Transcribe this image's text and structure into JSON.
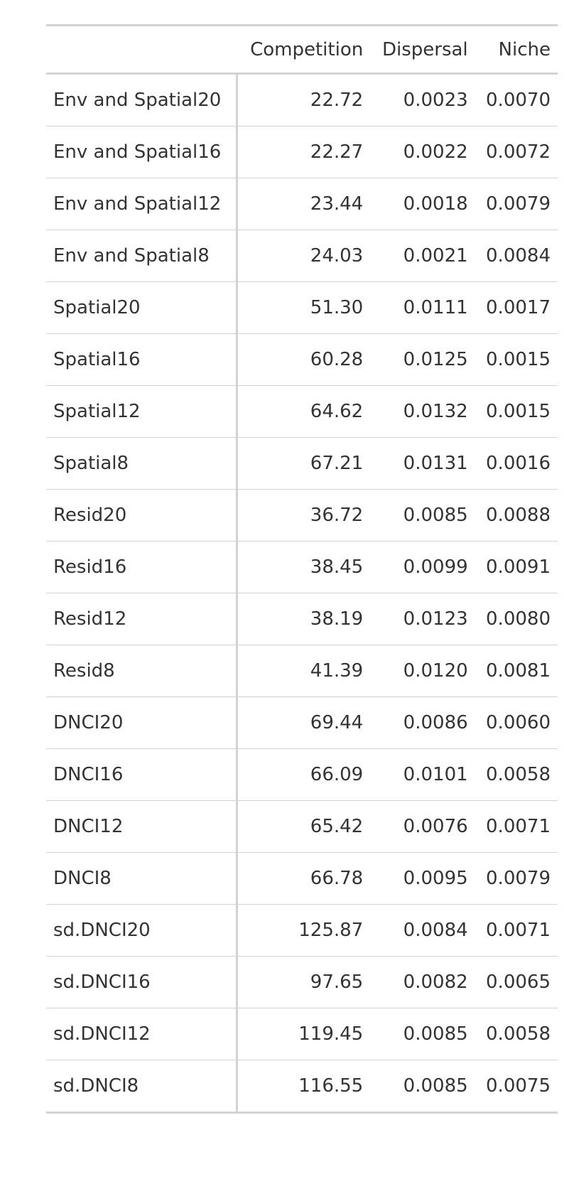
{
  "table": {
    "headers": {
      "stub": "",
      "competition": "Competition",
      "dispersal": "Dispersal",
      "niche": "Niche"
    },
    "rows": [
      {
        "label": "Env and Spatial20",
        "competition": "22.72",
        "dispersal": "0.0023",
        "niche": "0.0070"
      },
      {
        "label": "Env and Spatial16",
        "competition": "22.27",
        "dispersal": "0.0022",
        "niche": "0.0072"
      },
      {
        "label": "Env and Spatial12",
        "competition": "23.44",
        "dispersal": "0.0018",
        "niche": "0.0079"
      },
      {
        "label": "Env and Spatial8",
        "competition": "24.03",
        "dispersal": "0.0021",
        "niche": "0.0084"
      },
      {
        "label": "Spatial20",
        "competition": "51.30",
        "dispersal": "0.0111",
        "niche": "0.0017"
      },
      {
        "label": "Spatial16",
        "competition": "60.28",
        "dispersal": "0.0125",
        "niche": "0.0015"
      },
      {
        "label": "Spatial12",
        "competition": "64.62",
        "dispersal": "0.0132",
        "niche": "0.0015"
      },
      {
        "label": "Spatial8",
        "competition": "67.21",
        "dispersal": "0.0131",
        "niche": "0.0016"
      },
      {
        "label": "Resid20",
        "competition": "36.72",
        "dispersal": "0.0085",
        "niche": "0.0088"
      },
      {
        "label": "Resid16",
        "competition": "38.45",
        "dispersal": "0.0099",
        "niche": "0.0091"
      },
      {
        "label": "Resid12",
        "competition": "38.19",
        "dispersal": "0.0123",
        "niche": "0.0080"
      },
      {
        "label": "Resid8",
        "competition": "41.39",
        "dispersal": "0.0120",
        "niche": "0.0081"
      },
      {
        "label": "DNCI20",
        "competition": "69.44",
        "dispersal": "0.0086",
        "niche": "0.0060"
      },
      {
        "label": "DNCI16",
        "competition": "66.09",
        "dispersal": "0.0101",
        "niche": "0.0058"
      },
      {
        "label": "DNCI12",
        "competition": "65.42",
        "dispersal": "0.0076",
        "niche": "0.0071"
      },
      {
        "label": "DNCI8",
        "competition": "66.78",
        "dispersal": "0.0095",
        "niche": "0.0079"
      },
      {
        "label": "sd.DNCI20",
        "competition": "125.87",
        "dispersal": "0.0084",
        "niche": "0.0071"
      },
      {
        "label": "sd.DNCI16",
        "competition": "97.65",
        "dispersal": "0.0082",
        "niche": "0.0065"
      },
      {
        "label": "sd.DNCI12",
        "competition": "119.45",
        "dispersal": "0.0085",
        "niche": "0.0058"
      },
      {
        "label": "sd.DNCI8",
        "competition": "116.55",
        "dispersal": "0.0085",
        "niche": "0.0075"
      }
    ]
  }
}
